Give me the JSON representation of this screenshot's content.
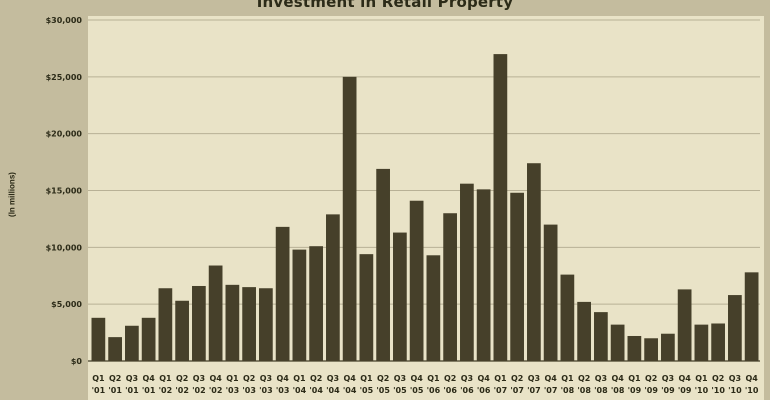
{
  "chart_data": {
    "type": "bar",
    "title": "Investment in Retail Property",
    "xlabel": "",
    "ylabel": "(In millions)",
    "ylim": [
      0,
      30000
    ],
    "yticks": [
      0,
      5000,
      10000,
      15000,
      20000,
      25000,
      30000
    ],
    "ytick_labels": [
      "$0",
      "$5,000",
      "$10,000",
      "$15,000",
      "$20,000",
      "$25,000",
      "$30,000"
    ],
    "grid": true,
    "categories": [
      [
        "Q1",
        "'01"
      ],
      [
        "Q2",
        "'01"
      ],
      [
        "Q3",
        "'01"
      ],
      [
        "Q4",
        "'01"
      ],
      [
        "Q1",
        "'02"
      ],
      [
        "Q2",
        "'02"
      ],
      [
        "Q3",
        "'02"
      ],
      [
        "Q4",
        "'02"
      ],
      [
        "Q1",
        "'03"
      ],
      [
        "Q2",
        "'03"
      ],
      [
        "Q3",
        "'03"
      ],
      [
        "Q4",
        "'03"
      ],
      [
        "Q1",
        "'04"
      ],
      [
        "Q2",
        "'04"
      ],
      [
        "Q3",
        "'04"
      ],
      [
        "Q4",
        "'04"
      ],
      [
        "Q1",
        "'05"
      ],
      [
        "Q2",
        "'05"
      ],
      [
        "Q3",
        "'05"
      ],
      [
        "Q4",
        "'05"
      ],
      [
        "Q1",
        "'06"
      ],
      [
        "Q2",
        "'06"
      ],
      [
        "Q3",
        "'06"
      ],
      [
        "Q4",
        "'06"
      ],
      [
        "Q1",
        "'07"
      ],
      [
        "Q2",
        "'07"
      ],
      [
        "Q3",
        "'07"
      ],
      [
        "Q4",
        "'07"
      ],
      [
        "Q1",
        "'08"
      ],
      [
        "Q2",
        "'08"
      ],
      [
        "Q3",
        "'08"
      ],
      [
        "Q4",
        "'08"
      ],
      [
        "Q1",
        "'09"
      ],
      [
        "Q2",
        "'09"
      ],
      [
        "Q3",
        "'09"
      ],
      [
        "Q4",
        "'09"
      ],
      [
        "Q1",
        "'10"
      ],
      [
        "Q2",
        "'10"
      ],
      [
        "Q3",
        "'10"
      ],
      [
        "Q4",
        "'10"
      ]
    ],
    "values": [
      3800,
      2100,
      3100,
      3800,
      6400,
      5300,
      6600,
      8400,
      6700,
      6500,
      6400,
      11800,
      9800,
      10100,
      12900,
      25000,
      9400,
      16900,
      11300,
      14100,
      9300,
      13000,
      15600,
      15100,
      27000,
      14800,
      17400,
      12000,
      7600,
      5200,
      4300,
      3200,
      2200,
      2000,
      2400,
      6300,
      3200,
      3300,
      5800,
      7800
    ],
    "colors": {
      "bar": "#46402a",
      "plot_background": "#e9e3c7",
      "frame": "#c4bc9e",
      "grid": "#b8b196",
      "text": "#2c2b18"
    }
  }
}
